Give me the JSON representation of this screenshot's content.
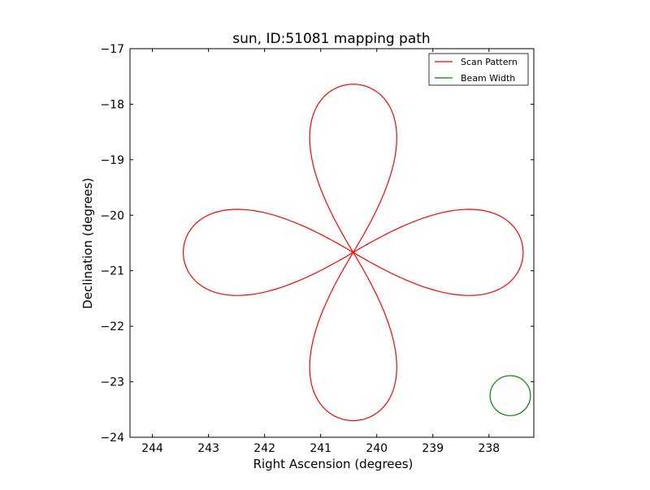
{
  "chart_data": {
    "type": "line",
    "title": "sun, ID:51081 mapping path",
    "xlabel": "Right Ascension (degrees)",
    "ylabel": "Declination (degrees)",
    "xlim": [
      244.4,
      237.2
    ],
    "ylim": [
      -24,
      -17
    ],
    "xticks": [
      244,
      243,
      242,
      241,
      240,
      239,
      238
    ],
    "yticks": [
      -24,
      -23,
      -22,
      -21,
      -20,
      -19,
      -18,
      -17
    ],
    "grid": false,
    "legend": {
      "position": "top-right",
      "entries": [
        "Scan Pattern",
        "Beam Width"
      ]
    },
    "series": [
      {
        "name": "Scan Pattern",
        "color": "#ff0000",
        "center": [
          240.42,
          -20.67
        ],
        "lobe_length": 3.03,
        "lobe_halfwidth": 0.9
      },
      {
        "name": "Beam Width",
        "color": "#008000",
        "center": [
          237.62,
          -23.25
        ],
        "radius_deg": 0.36
      }
    ]
  }
}
